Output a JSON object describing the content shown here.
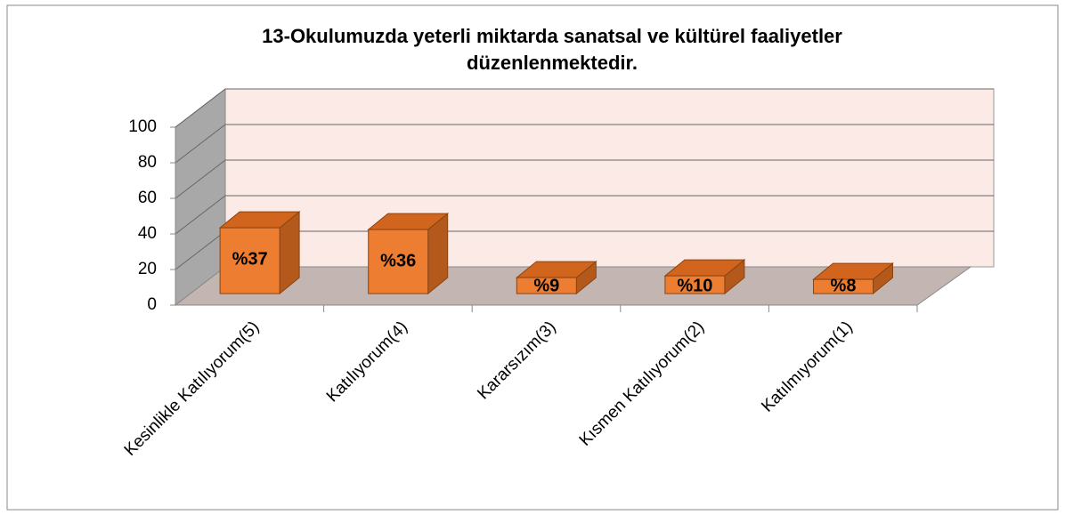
{
  "chart_data": {
    "type": "bar3d",
    "title": "13-Okulumuzda yeterli miktarda sanatsal ve kültürel faaliyetler düzenlenmektedir.",
    "categories": [
      "Kesinlikle Katılıyorum(5)",
      "Katılıyorum(4)",
      "Kararsızım(3)",
      "Kısmen Katılıyorum(2)",
      "Katılmıyorum(1)"
    ],
    "values": [
      37,
      36,
      9,
      10,
      8
    ],
    "value_labels": [
      "%37",
      "%36",
      "%9",
      "%10",
      "%8"
    ],
    "color": "#ed7d31",
    "ylim": [
      0,
      100
    ],
    "yticks": [
      0,
      20,
      40,
      60,
      80,
      100
    ],
    "grid": true
  }
}
